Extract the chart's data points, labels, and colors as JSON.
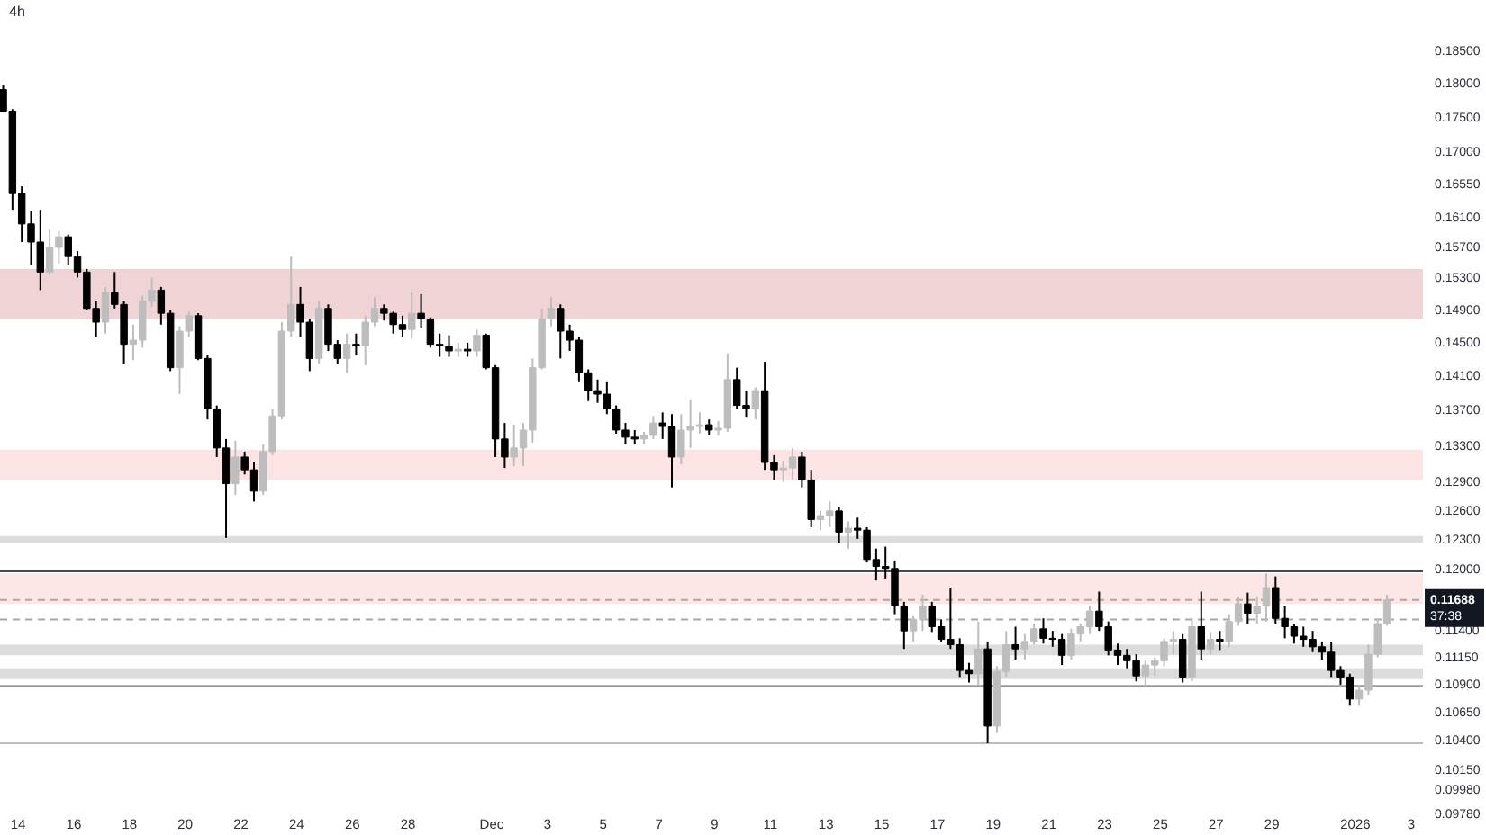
{
  "chart_data": {
    "type": "candlestick",
    "title": "4h",
    "x": [
      "2025-11-13T12:00",
      "2025-11-13T20:00",
      "2025-11-14T04:00",
      "2025-11-14T12:00",
      "2025-11-14T20:00",
      "2025-11-15T04:00",
      "2025-11-15T12:00",
      "2025-11-15T20:00",
      "2025-11-16T04:00",
      "2025-11-16T12:00",
      "2025-11-16T20:00",
      "2025-11-17T04:00",
      "2025-11-17T12:00",
      "2025-11-17T20:00",
      "2025-11-18T04:00",
      "2025-11-18T12:00",
      "2025-11-18T20:00",
      "2025-11-19T04:00",
      "2025-11-19T12:00",
      "2025-11-19T20:00",
      "2025-11-20T04:00",
      "2025-11-20T12:00",
      "2025-11-20T20:00",
      "2025-11-21T04:00",
      "2025-11-21T12:00",
      "2025-11-21T20:00",
      "2025-11-22T04:00",
      "2025-11-22T12:00",
      "2025-11-22T20:00",
      "2025-11-23T04:00",
      "2025-11-23T12:00",
      "2025-11-23T20:00",
      "2025-11-24T04:00",
      "2025-11-24T12:00",
      "2025-11-24T20:00",
      "2025-11-25T04:00",
      "2025-11-25T12:00",
      "2025-11-25T20:00",
      "2025-11-26T04:00",
      "2025-11-26T12:00",
      "2025-11-26T20:00",
      "2025-11-27T04:00",
      "2025-11-27T12:00",
      "2025-11-27T20:00",
      "2025-11-28T04:00",
      "2025-11-28T12:00",
      "2025-11-28T20:00",
      "2025-11-29T04:00",
      "2025-11-29T12:00",
      "2025-11-29T20:00",
      "2025-11-30T04:00",
      "2025-11-30T12:00",
      "2025-11-30T20:00",
      "2025-12-01T04:00",
      "2025-12-01T12:00",
      "2025-12-01T20:00",
      "2025-12-02T04:00",
      "2025-12-02T12:00",
      "2025-12-02T20:00",
      "2025-12-03T04:00",
      "2025-12-03T12:00",
      "2025-12-03T20:00",
      "2025-12-04T04:00",
      "2025-12-04T12:00",
      "2025-12-04T20:00",
      "2025-12-05T04:00",
      "2025-12-05T12:00",
      "2025-12-05T20:00",
      "2025-12-06T04:00",
      "2025-12-06T12:00",
      "2025-12-06T20:00",
      "2025-12-07T04:00",
      "2025-12-07T12:00",
      "2025-12-07T20:00",
      "2025-12-08T04:00",
      "2025-12-08T12:00",
      "2025-12-08T20:00",
      "2025-12-09T04:00",
      "2025-12-09T12:00",
      "2025-12-09T20:00",
      "2025-12-10T04:00",
      "2025-12-10T12:00",
      "2025-12-10T20:00",
      "2025-12-11T04:00",
      "2025-12-11T12:00",
      "2025-12-11T20:00",
      "2025-12-12T04:00",
      "2025-12-12T12:00",
      "2025-12-12T20:00",
      "2025-12-13T04:00",
      "2025-12-13T12:00",
      "2025-12-13T20:00",
      "2025-12-14T04:00",
      "2025-12-14T12:00",
      "2025-12-14T20:00",
      "2025-12-15T04:00",
      "2025-12-15T12:00",
      "2025-12-15T20:00",
      "2025-12-16T04:00",
      "2025-12-16T12:00",
      "2025-12-16T20:00",
      "2025-12-17T04:00",
      "2025-12-17T12:00",
      "2025-12-17T20:00",
      "2025-12-18T04:00",
      "2025-12-18T12:00",
      "2025-12-18T20:00",
      "2025-12-19T04:00",
      "2025-12-19T12:00",
      "2025-12-19T20:00",
      "2025-12-20T04:00",
      "2025-12-20T12:00",
      "2025-12-20T20:00",
      "2025-12-21T04:00",
      "2025-12-21T12:00",
      "2025-12-21T20:00",
      "2025-12-22T04:00",
      "2025-12-22T12:00",
      "2025-12-22T20:00",
      "2025-12-23T04:00",
      "2025-12-23T12:00",
      "2025-12-23T20:00",
      "2025-12-24T04:00",
      "2025-12-24T12:00",
      "2025-12-24T20:00",
      "2025-12-25T04:00",
      "2025-12-25T12:00",
      "2025-12-25T20:00",
      "2025-12-26T04:00",
      "2025-12-26T12:00",
      "2025-12-26T20:00",
      "2025-12-27T04:00",
      "2025-12-27T12:00",
      "2025-12-27T20:00",
      "2025-12-28T04:00",
      "2025-12-28T12:00",
      "2025-12-28T20:00",
      "2025-12-29T04:00",
      "2025-12-29T12:00",
      "2025-12-29T20:00",
      "2025-12-30T04:00",
      "2025-12-30T12:00",
      "2025-12-30T20:00",
      "2025-12-31T04:00",
      "2025-12-31T12:00",
      "2025-12-31T20:00",
      "2026-01-01T04:00",
      "2026-01-01T12:00",
      "2026-01-01T20:00",
      "2026-01-02T04:00"
    ],
    "ohlc": [
      [
        0.179,
        0.1796,
        0.1756,
        0.1758
      ],
      [
        0.1758,
        0.1761,
        0.1619,
        0.1641
      ],
      [
        0.1641,
        0.1651,
        0.1576,
        0.16
      ],
      [
        0.16,
        0.1617,
        0.1546,
        0.1576
      ],
      [
        0.1576,
        0.1619,
        0.1514,
        0.1537
      ],
      [
        0.1537,
        0.1593,
        0.1534,
        0.1569
      ],
      [
        0.1569,
        0.159,
        0.1548,
        0.1583
      ],
      [
        0.1583,
        0.1586,
        0.1546,
        0.1557
      ],
      [
        0.1557,
        0.1564,
        0.153,
        0.1537
      ],
      [
        0.1537,
        0.1541,
        0.1489,
        0.1491
      ],
      [
        0.1491,
        0.15,
        0.1456,
        0.1474
      ],
      [
        0.1474,
        0.1518,
        0.146,
        0.1511
      ],
      [
        0.1511,
        0.1537,
        0.1491,
        0.1496
      ],
      [
        0.1496,
        0.15,
        0.1424,
        0.1447
      ],
      [
        0.1447,
        0.1471,
        0.1428,
        0.1452
      ],
      [
        0.1452,
        0.1507,
        0.1443,
        0.15
      ],
      [
        0.15,
        0.153,
        0.1493,
        0.1514
      ],
      [
        0.1514,
        0.1518,
        0.1471,
        0.1485
      ],
      [
        0.1485,
        0.1489,
        0.1415,
        0.1419
      ],
      [
        0.1419,
        0.1469,
        0.1388,
        0.1463
      ],
      [
        0.1463,
        0.1487,
        0.1456,
        0.1482
      ],
      [
        0.1482,
        0.1485,
        0.1428,
        0.143
      ],
      [
        0.143,
        0.1434,
        0.1359,
        0.1371
      ],
      [
        0.1371,
        0.1375,
        0.1317,
        0.1327
      ],
      [
        0.1327,
        0.1337,
        0.1231,
        0.1288
      ],
      [
        0.1288,
        0.1335,
        0.1276,
        0.1317
      ],
      [
        0.1317,
        0.1323,
        0.1298,
        0.1303
      ],
      [
        0.1303,
        0.1311,
        0.1269,
        0.128
      ],
      [
        0.128,
        0.1331,
        0.1276,
        0.1323
      ],
      [
        0.1323,
        0.1371,
        0.1319,
        0.1363
      ],
      [
        0.1363,
        0.1474,
        0.1359,
        0.1463
      ],
      [
        0.1463,
        0.1557,
        0.1456,
        0.1496
      ],
      [
        0.1496,
        0.1518,
        0.1456,
        0.1474
      ],
      [
        0.1474,
        0.1478,
        0.1415,
        0.143
      ],
      [
        0.143,
        0.15,
        0.1424,
        0.1491
      ],
      [
        0.1491,
        0.1496,
        0.1439,
        0.1447
      ],
      [
        0.1447,
        0.1452,
        0.1424,
        0.143
      ],
      [
        0.143,
        0.146,
        0.1413,
        0.1447
      ],
      [
        0.1447,
        0.146,
        0.1434,
        0.1445
      ],
      [
        0.1445,
        0.1482,
        0.1422,
        0.1474
      ],
      [
        0.1474,
        0.1505,
        0.1469,
        0.1491
      ],
      [
        0.1491,
        0.1496,
        0.1476,
        0.1485
      ],
      [
        0.1485,
        0.1487,
        0.146,
        0.1471
      ],
      [
        0.1471,
        0.1482,
        0.1456,
        0.1465
      ],
      [
        0.1465,
        0.1511,
        0.1454,
        0.1485
      ],
      [
        0.1485,
        0.1509,
        0.1467,
        0.1478
      ],
      [
        0.1478,
        0.148,
        0.1443,
        0.1447
      ],
      [
        0.1447,
        0.146,
        0.1432,
        0.1445
      ],
      [
        0.1445,
        0.1458,
        0.1432,
        0.1439
      ],
      [
        0.1439,
        0.1449,
        0.1432,
        0.1441
      ],
      [
        0.1441,
        0.1449,
        0.1432,
        0.1439
      ],
      [
        0.1439,
        0.1465,
        0.1432,
        0.1458
      ],
      [
        0.1458,
        0.146,
        0.1417,
        0.1419
      ],
      [
        0.1419,
        0.1422,
        0.1317,
        0.1337
      ],
      [
        0.1337,
        0.1355,
        0.1305,
        0.1317
      ],
      [
        0.1317,
        0.1353,
        0.1307,
        0.1327
      ],
      [
        0.1327,
        0.1355,
        0.1307,
        0.1347
      ],
      [
        0.1347,
        0.143,
        0.1333,
        0.1419
      ],
      [
        0.1419,
        0.1491,
        0.1417,
        0.1478
      ],
      [
        0.1478,
        0.1505,
        0.1469,
        0.1491
      ],
      [
        0.1491,
        0.1496,
        0.143,
        0.1463
      ],
      [
        0.1463,
        0.1471,
        0.1439,
        0.1452
      ],
      [
        0.1452,
        0.1456,
        0.1403,
        0.1413
      ],
      [
        0.1413,
        0.1417,
        0.138,
        0.1392
      ],
      [
        0.1392,
        0.1405,
        0.1378,
        0.1388
      ],
      [
        0.1388,
        0.1403,
        0.1365,
        0.1371
      ],
      [
        0.1371,
        0.1375,
        0.1343,
        0.1347
      ],
      [
        0.1347,
        0.1355,
        0.1331,
        0.1339
      ],
      [
        0.1339,
        0.1347,
        0.1331,
        0.1337
      ],
      [
        0.1337,
        0.1345,
        0.1331,
        0.1341
      ],
      [
        0.1341,
        0.1363,
        0.1337,
        0.1355
      ],
      [
        0.1355,
        0.1367,
        0.1337,
        0.1351
      ],
      [
        0.1351,
        0.1365,
        0.1284,
        0.1317
      ],
      [
        0.1317,
        0.1365,
        0.1309,
        0.1347
      ],
      [
        0.1347,
        0.1382,
        0.1327,
        0.1351
      ],
      [
        0.1351,
        0.1367,
        0.1343,
        0.1353
      ],
      [
        0.1353,
        0.1359,
        0.1341,
        0.1347
      ],
      [
        0.1347,
        0.1357,
        0.1341,
        0.1349
      ],
      [
        0.1349,
        0.1436,
        0.1345,
        0.1405
      ],
      [
        0.1405,
        0.1419,
        0.1371,
        0.1375
      ],
      [
        0.1375,
        0.1392,
        0.1361,
        0.1371
      ],
      [
        0.1371,
        0.1396,
        0.1359,
        0.1392
      ],
      [
        0.1392,
        0.1426,
        0.1303,
        0.1311
      ],
      [
        0.1311,
        0.1319,
        0.1292,
        0.1303
      ],
      [
        0.1303,
        0.1313,
        0.129,
        0.1305
      ],
      [
        0.1305,
        0.1327,
        0.1292,
        0.1317
      ],
      [
        0.1317,
        0.1323,
        0.1284,
        0.1292
      ],
      [
        0.1292,
        0.1303,
        0.1242,
        0.125
      ],
      [
        0.125,
        0.1259,
        0.1239,
        0.1254
      ],
      [
        0.1254,
        0.1269,
        0.1242,
        0.1259
      ],
      [
        0.1259,
        0.1263,
        0.1226,
        0.1237
      ],
      [
        0.1237,
        0.1248,
        0.122,
        0.1241
      ],
      [
        0.1241,
        0.1252,
        0.123,
        0.1239
      ],
      [
        0.1239,
        0.1242,
        0.1206,
        0.1209
      ],
      [
        0.1209,
        0.122,
        0.1188,
        0.1202
      ],
      [
        0.1202,
        0.1222,
        0.119,
        0.12
      ],
      [
        0.12,
        0.1208,
        0.1155,
        0.1163
      ],
      [
        0.1163,
        0.1167,
        0.1122,
        0.1139
      ],
      [
        0.1139,
        0.1153,
        0.1129,
        0.115
      ],
      [
        0.115,
        0.1174,
        0.1139,
        0.1163
      ],
      [
        0.1163,
        0.1167,
        0.1138,
        0.1143
      ],
      [
        0.1143,
        0.115,
        0.1129,
        0.1131
      ],
      [
        0.1131,
        0.1181,
        0.1122,
        0.1126
      ],
      [
        0.1126,
        0.1132,
        0.1096,
        0.1102
      ],
      [
        0.1102,
        0.1109,
        0.1091,
        0.1099
      ],
      [
        0.1099,
        0.1148,
        0.1089,
        0.1122
      ],
      [
        0.1122,
        0.1129,
        0.1037,
        0.1052
      ],
      [
        0.1052,
        0.1106,
        0.1046,
        0.1101
      ],
      [
        0.1101,
        0.1139,
        0.1096,
        0.1126
      ],
      [
        0.1126,
        0.1143,
        0.1112,
        0.1122
      ],
      [
        0.1122,
        0.1136,
        0.1112,
        0.1129
      ],
      [
        0.1129,
        0.1146,
        0.1126,
        0.1141
      ],
      [
        0.1141,
        0.1151,
        0.1127,
        0.1132
      ],
      [
        0.1132,
        0.1139,
        0.1124,
        0.1131
      ],
      [
        0.1131,
        0.1136,
        0.1107,
        0.1116
      ],
      [
        0.1116,
        0.1141,
        0.1112,
        0.1136
      ],
      [
        0.1136,
        0.1146,
        0.1129,
        0.1143
      ],
      [
        0.1143,
        0.1163,
        0.1136,
        0.1158
      ],
      [
        0.1158,
        0.1177,
        0.1139,
        0.1143
      ],
      [
        0.1143,
        0.1148,
        0.1116,
        0.1121
      ],
      [
        0.1121,
        0.1127,
        0.1107,
        0.1116
      ],
      [
        0.1116,
        0.1122,
        0.1104,
        0.1111
      ],
      [
        0.1111,
        0.1117,
        0.1092,
        0.1097
      ],
      [
        0.1097,
        0.1111,
        0.1088,
        0.1107
      ],
      [
        0.1107,
        0.1114,
        0.1097,
        0.1111
      ],
      [
        0.1111,
        0.1132,
        0.1106,
        0.1129
      ],
      [
        0.1129,
        0.1139,
        0.1117,
        0.1131
      ],
      [
        0.1131,
        0.1136,
        0.1091,
        0.1096
      ],
      [
        0.1096,
        0.1151,
        0.1092,
        0.1143
      ],
      [
        0.1143,
        0.1177,
        0.1112,
        0.1122
      ],
      [
        0.1122,
        0.1138,
        0.1117,
        0.1131
      ],
      [
        0.1131,
        0.1139,
        0.1121,
        0.1129
      ],
      [
        0.1129,
        0.1155,
        0.1124,
        0.1148
      ],
      [
        0.1148,
        0.1172,
        0.1144,
        0.1165
      ],
      [
        0.1165,
        0.1176,
        0.1146,
        0.1156
      ],
      [
        0.1156,
        0.1172,
        0.1146,
        0.1163
      ],
      [
        0.1163,
        0.1195,
        0.1148,
        0.1181
      ],
      [
        0.1181,
        0.1192,
        0.1146,
        0.1151
      ],
      [
        0.1151,
        0.1163,
        0.1132,
        0.1143
      ],
      [
        0.1143,
        0.1146,
        0.1127,
        0.1134
      ],
      [
        0.1134,
        0.1143,
        0.1124,
        0.1131
      ],
      [
        0.1131,
        0.1139,
        0.1119,
        0.1124
      ],
      [
        0.1124,
        0.1129,
        0.1112,
        0.1119
      ],
      [
        0.1119,
        0.1129,
        0.1096,
        0.1102
      ],
      [
        0.1102,
        0.1106,
        0.1089,
        0.1096
      ],
      [
        0.1096,
        0.1099,
        0.107,
        0.1076
      ],
      [
        0.1076,
        0.1089,
        0.107,
        0.1084
      ],
      [
        0.1084,
        0.1126,
        0.108,
        0.1117
      ],
      [
        0.1117,
        0.1151,
        0.1114,
        0.1146
      ],
      [
        0.1146,
        0.1174,
        0.1144,
        0.11688
      ]
    ],
    "colors": [
      "#000000",
      "#000000",
      "#000000",
      "#000000",
      "#000000",
      "#bdbdbd",
      "#bdbdbd",
      "#000000",
      "#000000",
      "#000000",
      "#000000",
      "#bdbdbd",
      "#000000",
      "#000000",
      "#bdbdbd",
      "#bdbdbd",
      "#bdbdbd",
      "#000000",
      "#000000",
      "#bdbdbd",
      "#bdbdbd",
      "#000000",
      "#000000",
      "#000000",
      "#000000",
      "#bdbdbd",
      "#000000",
      "#000000",
      "#bdbdbd",
      "#bdbdbd",
      "#bdbdbd",
      "#bdbdbd",
      "#000000",
      "#000000",
      "#bdbdbd",
      "#000000",
      "#000000",
      "#bdbdbd",
      "#000000",
      "#bdbdbd",
      "#bdbdbd",
      "#000000",
      "#000000",
      "#000000",
      "#bdbdbd",
      "#000000",
      "#000000",
      "#000000",
      "#000000",
      "#bdbdbd",
      "#000000",
      "#bdbdbd",
      "#000000",
      "#000000",
      "#000000",
      "#bdbdbd",
      "#bdbdbd",
      "#bdbdbd",
      "#bdbdbd",
      "#bdbdbd",
      "#000000",
      "#000000",
      "#000000",
      "#000000",
      "#000000",
      "#000000",
      "#000000",
      "#000000",
      "#000000",
      "#bdbdbd",
      "#bdbdbd",
      "#000000",
      "#000000",
      "#bdbdbd",
      "#bdbdbd",
      "#bdbdbd",
      "#000000",
      "#bdbdbd",
      "#bdbdbd",
      "#000000",
      "#000000",
      "#bdbdbd",
      "#000000",
      "#000000",
      "#bdbdbd",
      "#bdbdbd",
      "#000000",
      "#000000",
      "#bdbdbd",
      "#bdbdbd",
      "#000000",
      "#bdbdbd",
      "#000000",
      "#000000",
      "#000000",
      "#000000",
      "#000000",
      "#000000",
      "#bdbdbd",
      "#bdbdbd",
      "#000000",
      "#000000",
      "#000000",
      "#000000",
      "#000000",
      "#bdbdbd",
      "#000000",
      "#bdbdbd",
      "#bdbdbd",
      "#000000",
      "#bdbdbd",
      "#bdbdbd",
      "#000000",
      "#000000",
      "#000000",
      "#bdbdbd",
      "#bdbdbd",
      "#bdbdbd",
      "#000000",
      "#000000",
      "#000000",
      "#000000",
      "#000000",
      "#bdbdbd",
      "#bdbdbd",
      "#bdbdbd",
      "#bdbdbd",
      "#000000",
      "#bdbdbd",
      "#000000",
      "#bdbdbd",
      "#000000",
      "#bdbdbd",
      "#bdbdbd",
      "#000000",
      "#bdbdbd",
      "#bdbdbd",
      "#000000",
      "#000000",
      "#000000",
      "#000000",
      "#000000",
      "#000000",
      "#000000",
      "#000000",
      "#000000",
      "#bdbdbd",
      "#bdbdbd",
      "#bdbdbd",
      "#bdbdbd"
    ],
    "xlim": [
      "2025-11-13T09:15",
      "2026-01-03T11:00"
    ],
    "xticks": [
      {
        "value": "2025-11-14",
        "label": "14"
      },
      {
        "value": "2025-11-16",
        "label": "16"
      },
      {
        "value": "2025-11-18",
        "label": "18"
      },
      {
        "value": "2025-11-20",
        "label": "20"
      },
      {
        "value": "2025-11-22",
        "label": "22"
      },
      {
        "value": "2025-11-24",
        "label": "24"
      },
      {
        "value": "2025-11-26",
        "label": "26"
      },
      {
        "value": "2025-11-28",
        "label": "28"
      },
      {
        "value": "2025-12-01",
        "label": "Dec"
      },
      {
        "value": "2025-12-03",
        "label": "3"
      },
      {
        "value": "2025-12-05",
        "label": "5"
      },
      {
        "value": "2025-12-07",
        "label": "7"
      },
      {
        "value": "2025-12-09",
        "label": "9"
      },
      {
        "value": "2025-12-11",
        "label": "11"
      },
      {
        "value": "2025-12-13",
        "label": "13"
      },
      {
        "value": "2025-12-15",
        "label": "15"
      },
      {
        "value": "2025-12-17",
        "label": "17"
      },
      {
        "value": "2025-12-19",
        "label": "19"
      },
      {
        "value": "2025-12-21",
        "label": "21"
      },
      {
        "value": "2025-12-23",
        "label": "23"
      },
      {
        "value": "2025-12-25",
        "label": "25"
      },
      {
        "value": "2025-12-27",
        "label": "27"
      },
      {
        "value": "2025-12-29",
        "label": "29"
      },
      {
        "value": "2026-01-01",
        "label": "2026"
      },
      {
        "value": "2026-01-03",
        "label": "3"
      }
    ],
    "ylim": [
      0.0978,
      0.1929
    ],
    "yticks": [
      {
        "value": 0.185,
        "label": "0.18500"
      },
      {
        "value": 0.18,
        "label": "0.18000"
      },
      {
        "value": 0.175,
        "label": "0.17500"
      },
      {
        "value": 0.17,
        "label": "0.17000"
      },
      {
        "value": 0.1655,
        "label": "0.16550"
      },
      {
        "value": 0.161,
        "label": "0.16100"
      },
      {
        "value": 0.157,
        "label": "0.15700"
      },
      {
        "value": 0.153,
        "label": "0.15300"
      },
      {
        "value": 0.149,
        "label": "0.14900"
      },
      {
        "value": 0.145,
        "label": "0.14500"
      },
      {
        "value": 0.141,
        "label": "0.14100"
      },
      {
        "value": 0.137,
        "label": "0.13700"
      },
      {
        "value": 0.133,
        "label": "0.13300"
      },
      {
        "value": 0.129,
        "label": "0.12900"
      },
      {
        "value": 0.126,
        "label": "0.12600"
      },
      {
        "value": 0.123,
        "label": "0.12300"
      },
      {
        "value": 0.12,
        "label": "0.12000"
      },
      {
        "value": 0.114,
        "label": "0.11400"
      },
      {
        "value": 0.1115,
        "label": "0.11150"
      },
      {
        "value": 0.109,
        "label": "0.10900"
      },
      {
        "value": 0.1065,
        "label": "0.10650"
      },
      {
        "value": 0.104,
        "label": "0.10400"
      },
      {
        "value": 0.1015,
        "label": "0.10150"
      },
      {
        "value": 0.0998,
        "label": "0.09980"
      },
      {
        "value": 0.0978,
        "label": "0.09780"
      }
    ],
    "log": true,
    "grid": false,
    "bands": [
      {
        "axis": "y",
        "from": 0.1478,
        "to": 0.1541,
        "color": "#efd3d5"
      },
      {
        "axis": "y",
        "from": 0.1292,
        "to": 0.1325,
        "color": "#fce4e4"
      },
      {
        "axis": "y",
        "from": 0.1226,
        "to": 0.1233,
        "color": "#dddddd"
      },
      {
        "axis": "y",
        "from": 0.1165,
        "to": 0.1195,
        "color": "#fde6e6"
      },
      {
        "axis": "y",
        "from": 0.1116,
        "to": 0.1126,
        "color": "#dcdcdc"
      },
      {
        "axis": "y",
        "from": 0.1094,
        "to": 0.1104,
        "color": "#dcdcdc"
      }
    ],
    "ref_lines": [
      {
        "axis": "y",
        "value": 0.1197,
        "color": "#4a4a4a",
        "line_style": "solid"
      },
      {
        "axis": "y",
        "value": 0.11688,
        "label": "0.11688",
        "color": "#a8a8a8",
        "line_style": "dashed"
      },
      {
        "axis": "y",
        "value": 0.115,
        "color": "#a8a8a8",
        "line_style": "dashed"
      },
      {
        "axis": "y",
        "value": 0.1088,
        "color": "#9a9a9a",
        "line_style": "solid"
      },
      {
        "axis": "y",
        "value": 0.1037,
        "color": "#bdbdbd",
        "line_style": "solid"
      }
    ],
    "annotations": [
      "37:38"
    ]
  }
}
